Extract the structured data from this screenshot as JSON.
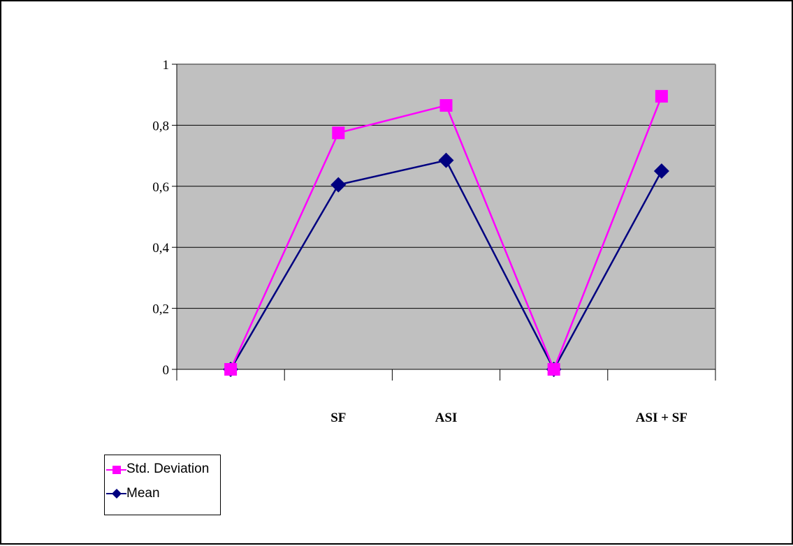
{
  "chart_data": {
    "type": "line",
    "categories": [
      "",
      "SF",
      "ASI",
      "",
      "ASI + SF"
    ],
    "series": [
      {
        "name": "Std. Deviation",
        "values": [
          0.0,
          0.775,
          0.865,
          0.0,
          0.895
        ],
        "color": "#ff00ff",
        "marker": "square"
      },
      {
        "name": "Mean",
        "values": [
          0.0,
          0.605,
          0.685,
          0.0,
          0.65
        ],
        "color": "#000080",
        "marker": "diamond"
      }
    ],
    "yticks": [
      "0",
      "0,2",
      "0,4",
      "0,6",
      "0,8",
      "1"
    ],
    "ylim": [
      0,
      1
    ],
    "grid": true,
    "legend": "bottom-left",
    "plot_background": "#c0c0c0"
  }
}
